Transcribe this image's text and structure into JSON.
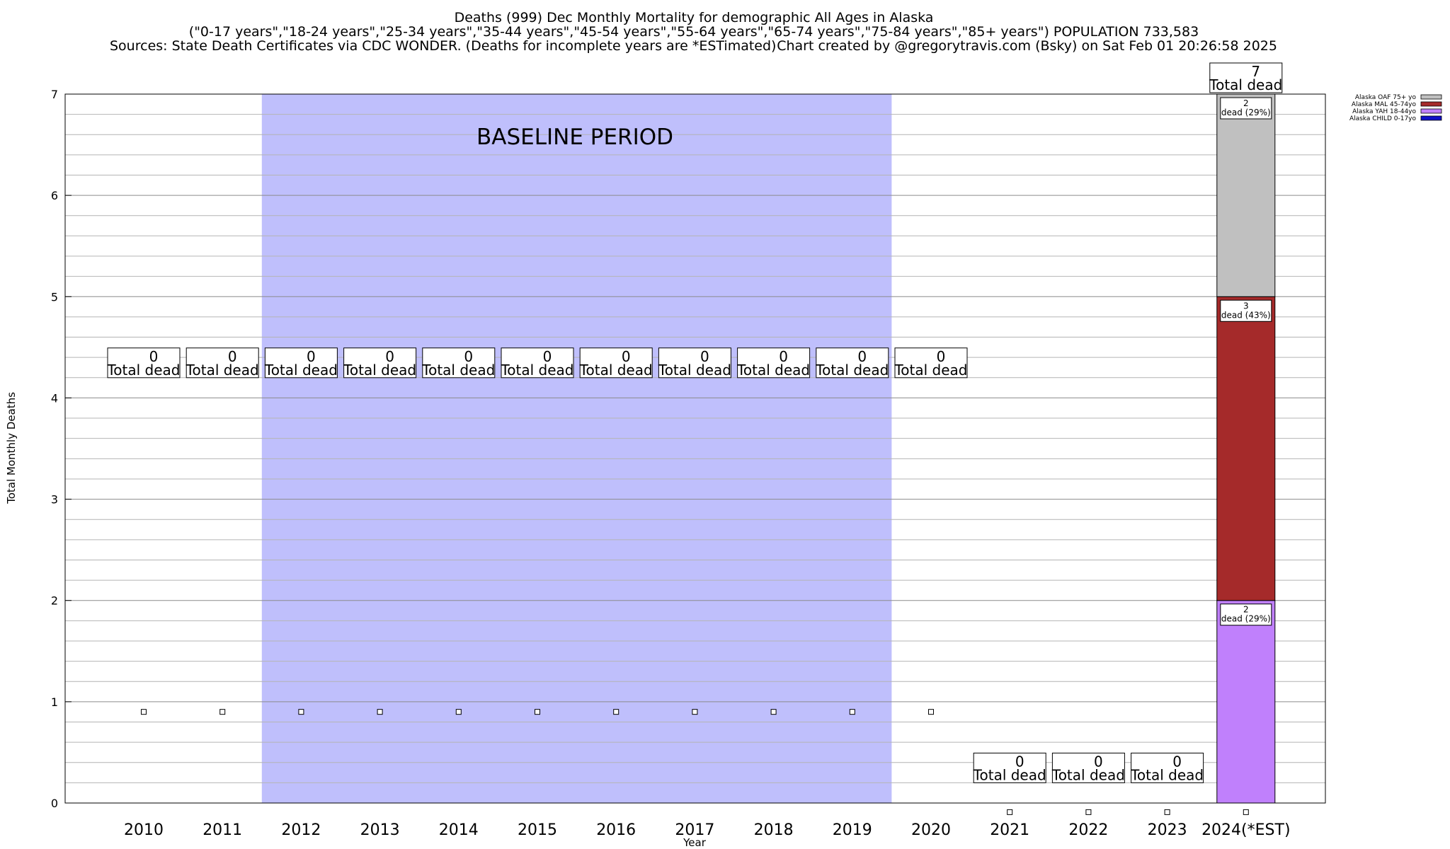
{
  "chart_data": {
    "type": "bar",
    "title_lines": [
      "Deaths (999) Dec Monthly Mortality for demographic All Ages in Alaska",
      "(\"0-17 years\",\"18-24 years\",\"25-34 years\",\"35-44 years\",\"45-54 years\",\"55-64 years\",\"65-74 years\",\"75-84 years\",\"85+ years\") POPULATION 733,583"
    ],
    "sources_text": "Sources: State Death Certificates via CDC WONDER. (Deaths for incomplete years are *ESTimated)",
    "credit_text": "Chart created by @gregorytravis.com (Bsky) on Sat Feb 01 20:26:58 2025",
    "xlabel": "Year",
    "ylabel": "Total Monthly Deaths",
    "ylim": [
      0,
      7
    ],
    "yticks": [
      0,
      1,
      2,
      3,
      4,
      5,
      6,
      7
    ],
    "minor_step": 0.2,
    "grid": true,
    "baseline": {
      "label": "BASELINE PERIOD",
      "start_category": "2012",
      "end_category": "2019",
      "color": "#bfbffc"
    },
    "categories": [
      "2010",
      "2011",
      "2012",
      "2013",
      "2014",
      "2015",
      "2016",
      "2017",
      "2018",
      "2019",
      "2020",
      "2021",
      "2022",
      "2023",
      "2024(*EST)"
    ],
    "totals": [
      0,
      0,
      0,
      0,
      0,
      0,
      0,
      0,
      0,
      0,
      0,
      0,
      0,
      0,
      7
    ],
    "total_box_text": "Total dead",
    "total_box_y": [
      4.2,
      4.2,
      4.2,
      4.2,
      4.2,
      4.2,
      4.2,
      4.2,
      4.2,
      4.2,
      4.2,
      0.2,
      0.2,
      0.2,
      7.0
    ],
    "marker_y": [
      0.9,
      0.9,
      0.9,
      0.9,
      0.9,
      0.9,
      0.9,
      0.9,
      0.9,
      0.9,
      0.9,
      -0.09,
      -0.09,
      -0.09,
      -0.09
    ],
    "series": [
      {
        "name": "Alaska CHILD 0-17yo",
        "color": "#1010c8",
        "values": [
          0,
          0,
          0,
          0,
          0,
          0,
          0,
          0,
          0,
          0,
          0,
          0,
          0,
          0,
          0
        ],
        "labels": [
          "",
          "",
          "",
          "",
          "",
          "",
          "",
          "",
          "",
          "",
          "",
          "",
          "",
          "",
          ""
        ]
      },
      {
        "name": "Alaska YAH 18-44yo",
        "color": "#c080fc",
        "values": [
          0,
          0,
          0,
          0,
          0,
          0,
          0,
          0,
          0,
          0,
          0,
          0,
          0,
          0,
          2
        ],
        "labels": [
          "",
          "",
          "",
          "",
          "",
          "",
          "",
          "",
          "",
          "",
          "",
          "",
          "",
          "",
          "dead (29%)"
        ]
      },
      {
        "name": "Alaska MAL 45-74yo",
        "color": "#a52a2a",
        "values": [
          0,
          0,
          0,
          0,
          0,
          0,
          0,
          0,
          0,
          0,
          0,
          0,
          0,
          0,
          3
        ],
        "labels": [
          "",
          "",
          "",
          "",
          "",
          "",
          "",
          "",
          "",
          "",
          "",
          "",
          "",
          "",
          "dead (43%)"
        ]
      },
      {
        "name": "Alaska OAF 75+ yo",
        "color": "#c0c0c0",
        "values": [
          0,
          0,
          0,
          0,
          0,
          0,
          0,
          0,
          0,
          0,
          0,
          0,
          0,
          0,
          2
        ],
        "labels": [
          "",
          "",
          "",
          "",
          "",
          "",
          "",
          "",
          "",
          "",
          "",
          "",
          "",
          "",
          "dead (29%)"
        ]
      }
    ]
  }
}
